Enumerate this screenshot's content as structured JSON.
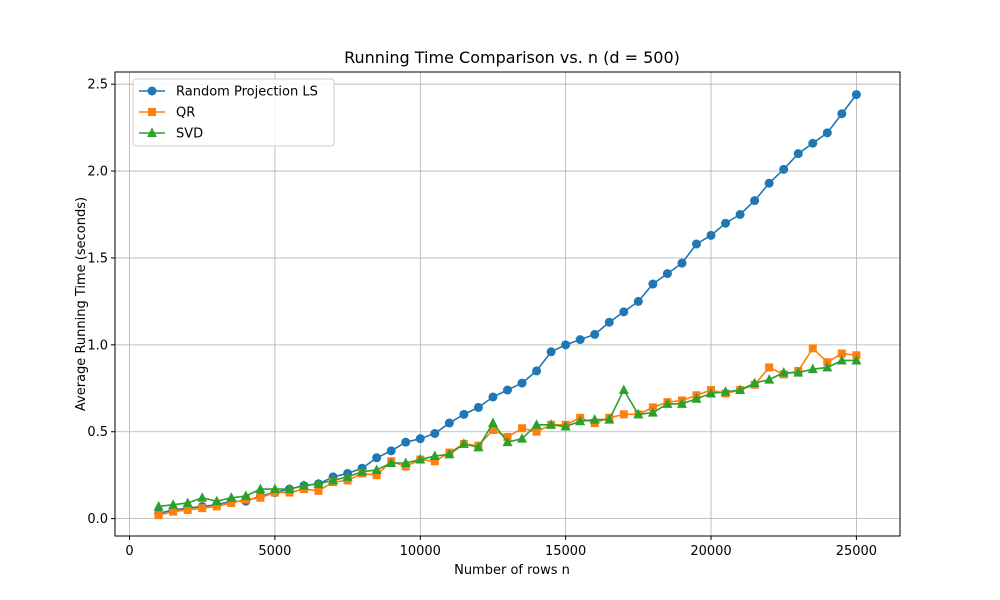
{
  "chart_data": {
    "type": "line",
    "title": "Running Time Comparison vs. n (d = 500)",
    "xlabel": "Number of rows n",
    "ylabel": "Average Running Time (seconds)",
    "xlim": [
      -500,
      26500
    ],
    "ylim": [
      -0.1,
      2.57
    ],
    "xticks": [
      0,
      5000,
      10000,
      15000,
      20000,
      25000
    ],
    "xtick_labels": [
      "0",
      "5000",
      "10000",
      "15000",
      "20000",
      "25000"
    ],
    "yticks": [
      0.0,
      0.5,
      1.0,
      1.5,
      2.0,
      2.5
    ],
    "ytick_labels": [
      "0.0",
      "0.5",
      "1.0",
      "1.5",
      "2.0",
      "2.5"
    ],
    "grid": true,
    "legend": "upper-left",
    "x": [
      1000,
      1500,
      2000,
      2500,
      3000,
      3500,
      4000,
      4500,
      5000,
      5500,
      6000,
      6500,
      7000,
      7500,
      8000,
      8500,
      9000,
      9500,
      10000,
      10500,
      11000,
      11500,
      12000,
      12500,
      13000,
      13500,
      14000,
      14500,
      15000,
      15500,
      16000,
      16500,
      17000,
      17500,
      18000,
      18500,
      19000,
      19500,
      20000,
      20500,
      21000,
      21500,
      22000,
      22500,
      23000,
      23500,
      24000,
      24500,
      25000
    ],
    "series": [
      {
        "name": "Random Projection LS",
        "color": "#1f77b4",
        "marker": "circle",
        "values": [
          0.03,
          0.05,
          0.06,
          0.07,
          0.08,
          0.1,
          0.1,
          0.13,
          0.15,
          0.17,
          0.19,
          0.2,
          0.24,
          0.26,
          0.29,
          0.35,
          0.39,
          0.44,
          0.46,
          0.49,
          0.55,
          0.6,
          0.64,
          0.7,
          0.74,
          0.78,
          0.85,
          0.96,
          1.0,
          1.03,
          1.06,
          1.13,
          1.19,
          1.25,
          1.35,
          1.41,
          1.47,
          1.58,
          1.63,
          1.7,
          1.75,
          1.83,
          1.93,
          2.01,
          2.1,
          2.16,
          2.22,
          2.33,
          2.44
        ]
      },
      {
        "name": "QR",
        "color": "#ff7f0e",
        "marker": "square",
        "values": [
          0.02,
          0.04,
          0.05,
          0.06,
          0.07,
          0.09,
          0.11,
          0.12,
          0.15,
          0.15,
          0.17,
          0.16,
          0.21,
          0.22,
          0.26,
          0.25,
          0.33,
          0.3,
          0.34,
          0.33,
          0.38,
          0.43,
          0.42,
          0.51,
          0.47,
          0.52,
          0.5,
          0.54,
          0.54,
          0.58,
          0.55,
          0.58,
          0.6,
          0.6,
          0.64,
          0.67,
          0.68,
          0.71,
          0.74,
          0.72,
          0.74,
          0.77,
          0.87,
          0.83,
          0.85,
          0.98,
          0.9,
          0.95,
          0.94
        ]
      },
      {
        "name": "SVD",
        "color": "#2ca02c",
        "marker": "triangle",
        "values": [
          0.07,
          0.08,
          0.09,
          0.12,
          0.1,
          0.12,
          0.13,
          0.17,
          0.17,
          0.17,
          0.19,
          0.2,
          0.22,
          0.24,
          0.27,
          0.28,
          0.32,
          0.32,
          0.34,
          0.36,
          0.37,
          0.43,
          0.41,
          0.55,
          0.44,
          0.46,
          0.54,
          0.54,
          0.53,
          0.56,
          0.57,
          0.57,
          0.74,
          0.6,
          0.61,
          0.66,
          0.66,
          0.69,
          0.72,
          0.73,
          0.74,
          0.78,
          0.8,
          0.84,
          0.84,
          0.86,
          0.87,
          0.91,
          0.91
        ]
      }
    ]
  }
}
